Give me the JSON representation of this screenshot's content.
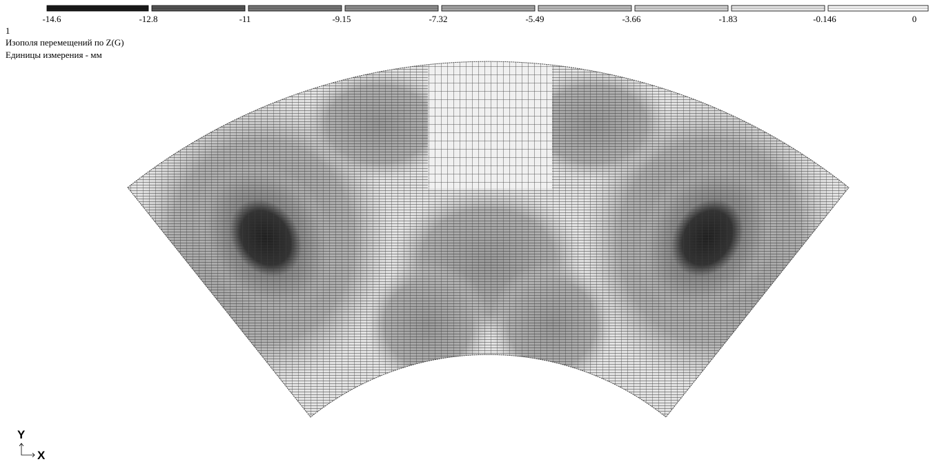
{
  "legend": {
    "ticks": [
      -14.6,
      -12.8,
      -11,
      -9.15,
      -7.32,
      -5.49,
      -3.66,
      -1.83,
      -0.146,
      0
    ],
    "colors": [
      "#1a1a1a",
      "#555555",
      "#777777",
      "#8f8f8f",
      "#a6a6a6",
      "#bdbdbd",
      "#d2d2d2",
      "#e6e6e6",
      "#f7f7f7"
    ]
  },
  "header": {
    "case": "1",
    "title": "Изополя  перемещений по Z(G)",
    "units": "Единицы измерения - мм"
  },
  "axes": {
    "y": "Y",
    "x": "X"
  }
}
